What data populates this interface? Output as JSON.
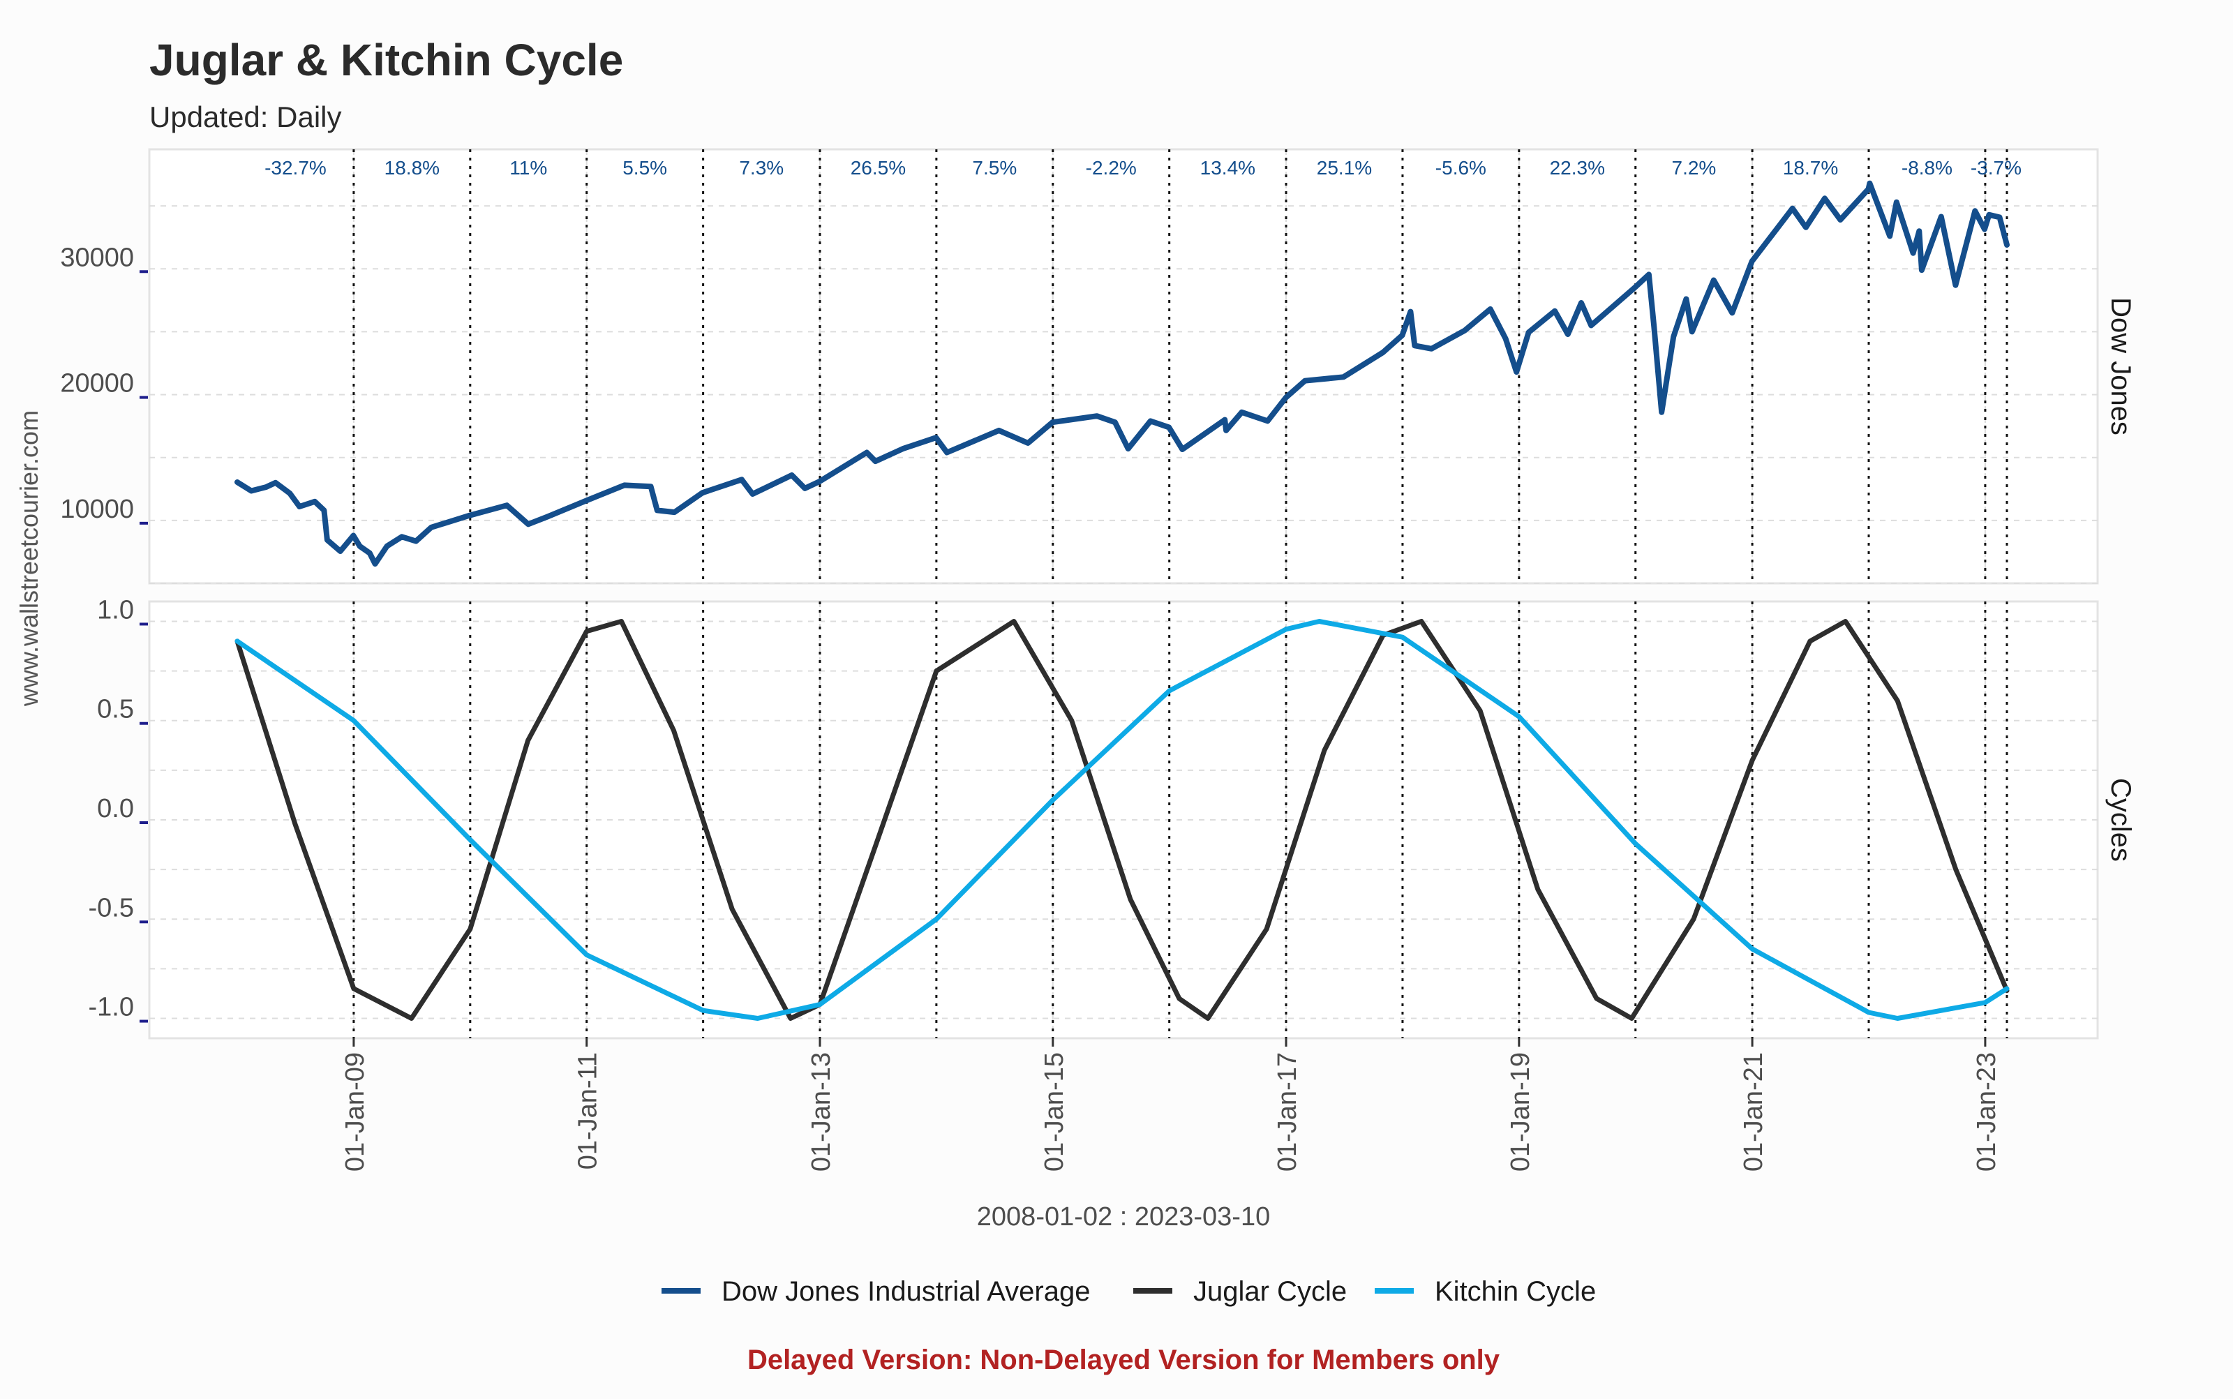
{
  "chart_data": {
    "type": "line",
    "title": "Juglar & Kitchin Cycle",
    "subtitle": "Updated: Daily",
    "side_label": "www.wallstreetcourier.com",
    "xlabel": "2008-01-02 : 2023-03-10",
    "footer": "Delayed Version: Non-Delayed Version for Members only",
    "grid": true,
    "legend_position": "bottom",
    "x_range": [
      "2008-01-02",
      "2023-03-10"
    ],
    "x_tick_labels": [
      "01-Jan-09",
      "01-Jan-11",
      "01-Jan-13",
      "01-Jan-15",
      "01-Jan-17",
      "01-Jan-19",
      "01-Jan-21",
      "01-Jan-23"
    ],
    "x_tick_dates": [
      "2009-01-01",
      "2011-01-01",
      "2013-01-01",
      "2015-01-01",
      "2017-01-01",
      "2019-01-01",
      "2021-01-01",
      "2023-01-01"
    ],
    "year_markers": [
      "2009-01-01",
      "2010-01-01",
      "2011-01-01",
      "2012-01-01",
      "2013-01-01",
      "2014-01-01",
      "2015-01-01",
      "2016-01-01",
      "2017-01-01",
      "2018-01-01",
      "2019-01-01",
      "2020-01-01",
      "2021-01-01",
      "2022-01-01",
      "2023-01-01",
      "2023-03-10"
    ],
    "annual_returns": [
      {
        "year": "2008",
        "label": "-32.7%"
      },
      {
        "year": "2009",
        "label": "18.8%"
      },
      {
        "year": "2010",
        "label": "11%"
      },
      {
        "year": "2011",
        "label": "5.5%"
      },
      {
        "year": "2012",
        "label": "7.3%"
      },
      {
        "year": "2013",
        "label": "26.5%"
      },
      {
        "year": "2014",
        "label": "7.5%"
      },
      {
        "year": "2015",
        "label": "-2.2%"
      },
      {
        "year": "2016",
        "label": "13.4%"
      },
      {
        "year": "2017",
        "label": "25.1%"
      },
      {
        "year": "2018",
        "label": "-5.6%"
      },
      {
        "year": "2019",
        "label": "22.3%"
      },
      {
        "year": "2020",
        "label": "7.2%"
      },
      {
        "year": "2021",
        "label": "18.7%"
      },
      {
        "year": "2022",
        "label": "-8.8%"
      },
      {
        "year": "2023",
        "label": "-3.7%"
      }
    ],
    "panels": [
      {
        "name": "Dow Jones",
        "ylim": [
          5000,
          39500
        ],
        "y_ticks": [
          10000,
          20000,
          30000
        ],
        "y_tick_labels": [
          "10000",
          "20000",
          "30000"
        ],
        "series": [
          {
            "name": "Dow Jones Industrial Average",
            "color": "#144e8c",
            "points": [
              [
                "2008-01-02",
                13044
              ],
              [
                "2008-02-15",
                12350
              ],
              [
                "2008-04-01",
                12650
              ],
              [
                "2008-05-01",
                13000
              ],
              [
                "2008-06-15",
                12150
              ],
              [
                "2008-07-15",
                11100
              ],
              [
                "2008-09-01",
                11500
              ],
              [
                "2008-09-30",
                10800
              ],
              [
                "2008-10-10",
                8450
              ],
              [
                "2008-11-20",
                7550
              ],
              [
                "2008-12-31",
                8800
              ],
              [
                "2009-01-20",
                7950
              ],
              [
                "2009-02-20",
                7400
              ],
              [
                "2009-03-09",
                6550
              ],
              [
                "2009-04-15",
                7950
              ],
              [
                "2009-06-01",
                8700
              ],
              [
                "2009-07-15",
                8350
              ],
              [
                "2009-09-01",
                9450
              ],
              [
                "2009-12-31",
                10400
              ],
              [
                "2010-04-26",
                11200
              ],
              [
                "2010-07-02",
                9700
              ],
              [
                "2010-09-01",
                10300
              ],
              [
                "2010-12-31",
                11580
              ],
              [
                "2011-04-29",
                12800
              ],
              [
                "2011-07-21",
                12700
              ],
              [
                "2011-08-10",
                10800
              ],
              [
                "2011-10-03",
                10650
              ],
              [
                "2011-12-30",
                12200
              ],
              [
                "2012-05-01",
                13250
              ],
              [
                "2012-06-04",
                12100
              ],
              [
                "2012-10-05",
                13600
              ],
              [
                "2012-11-15",
                12550
              ],
              [
                "2012-12-31",
                13100
              ],
              [
                "2013-05-28",
                15400
              ],
              [
                "2013-06-24",
                14700
              ],
              [
                "2013-09-18",
                15700
              ],
              [
                "2013-12-31",
                16580
              ],
              [
                "2014-02-03",
                15400
              ],
              [
                "2014-07-16",
                17150
              ],
              [
                "2014-10-15",
                16150
              ],
              [
                "2014-12-31",
                17800
              ],
              [
                "2015-05-19",
                18300
              ],
              [
                "2015-07-15",
                17800
              ],
              [
                "2015-08-25",
                15700
              ],
              [
                "2015-11-03",
                17900
              ],
              [
                "2015-12-31",
                17400
              ],
              [
                "2016-02-11",
                15650
              ],
              [
                "2016-06-23",
                18000
              ],
              [
                "2016-06-27",
                17150
              ],
              [
                "2016-08-15",
                18600
              ],
              [
                "2016-11-04",
                17900
              ],
              [
                "2016-12-31",
                19760
              ],
              [
                "2017-03-01",
                21100
              ],
              [
                "2017-06-30",
                21400
              ],
              [
                "2017-10-31",
                23350
              ],
              [
                "2017-12-31",
                24720
              ],
              [
                "2018-01-26",
                26600
              ],
              [
                "2018-02-08",
                23900
              ],
              [
                "2018-04-02",
                23650
              ],
              [
                "2018-07-15",
                25100
              ],
              [
                "2018-10-03",
                26800
              ],
              [
                "2018-11-20",
                24450
              ],
              [
                "2018-12-24",
                21800
              ],
              [
                "2019-01-31",
                24950
              ],
              [
                "2019-04-23",
                26650
              ],
              [
                "2019-06-03",
                24800
              ],
              [
                "2019-07-15",
                27300
              ],
              [
                "2019-08-15",
                25500
              ],
              [
                "2019-12-31",
                28540
              ],
              [
                "2020-02-12",
                29550
              ],
              [
                "2020-02-28",
                25400
              ],
              [
                "2020-03-23",
                18600
              ],
              [
                "2020-04-29",
                24600
              ],
              [
                "2020-06-08",
                27600
              ],
              [
                "2020-06-26",
                25000
              ],
              [
                "2020-09-02",
                29100
              ],
              [
                "2020-10-30",
                26500
              ],
              [
                "2020-12-31",
                30600
              ],
              [
                "2021-05-07",
                34800
              ],
              [
                "2021-06-18",
                33300
              ],
              [
                "2021-08-16",
                35600
              ],
              [
                "2021-10-04",
                33900
              ],
              [
                "2021-12-31",
                36340
              ],
              [
                "2022-01-04",
                36800
              ],
              [
                "2022-03-08",
                32600
              ],
              [
                "2022-03-29",
                35300
              ],
              [
                "2022-05-20",
                31250
              ],
              [
                "2022-06-08",
                33000
              ],
              [
                "2022-06-16",
                29900
              ],
              [
                "2022-08-16",
                34150
              ],
              [
                "2022-09-30",
                28700
              ],
              [
                "2022-11-30",
                34600
              ],
              [
                "2022-12-30",
                33150
              ],
              [
                "2023-01-13",
                34300
              ],
              [
                "2023-02-15",
                34100
              ],
              [
                "2023-03-10",
                31900
              ]
            ]
          }
        ]
      },
      {
        "name": "Cycles",
        "ylim": [
          -1.1,
          1.1
        ],
        "y_ticks": [
          -1.0,
          -0.5,
          0.0,
          0.5,
          1.0
        ],
        "y_tick_labels": [
          "-1.0",
          "-0.5",
          "0.0",
          "0.5",
          "1.0"
        ],
        "series": [
          {
            "name": "Juglar Cycle",
            "color": "#2e2e2e",
            "points": [
              [
                "2008-01-02",
                0.9
              ],
              [
                "2008-07-01",
                -0.02
              ],
              [
                "2009-01-01",
                -0.85
              ],
              [
                "2009-07-01",
                -1.0
              ],
              [
                "2010-01-01",
                -0.55
              ],
              [
                "2010-07-01",
                0.4
              ],
              [
                "2011-01-01",
                0.95
              ],
              [
                "2011-04-20",
                1.0
              ],
              [
                "2011-10-01",
                0.45
              ],
              [
                "2012-04-01",
                -0.45
              ],
              [
                "2012-10-01",
                -1.0
              ],
              [
                "2013-01-01",
                -0.93
              ],
              [
                "2013-07-01",
                -0.1
              ],
              [
                "2014-01-01",
                0.75
              ],
              [
                "2014-09-01",
                1.0
              ],
              [
                "2015-03-01",
                0.5
              ],
              [
                "2015-09-01",
                -0.4
              ],
              [
                "2016-02-01",
                -0.9
              ],
              [
                "2016-05-01",
                -1.0
              ],
              [
                "2016-11-01",
                -0.55
              ],
              [
                "2017-05-01",
                0.35
              ],
              [
                "2017-11-01",
                0.93
              ],
              [
                "2018-03-01",
                1.0
              ],
              [
                "2018-09-01",
                0.55
              ],
              [
                "2019-03-01",
                -0.35
              ],
              [
                "2019-09-01",
                -0.9
              ],
              [
                "2019-12-20",
                -1.0
              ],
              [
                "2020-07-01",
                -0.5
              ],
              [
                "2021-01-01",
                0.3
              ],
              [
                "2021-07-01",
                0.9
              ],
              [
                "2021-10-20",
                1.0
              ],
              [
                "2022-04-01",
                0.6
              ],
              [
                "2022-10-01",
                -0.25
              ],
              [
                "2023-03-10",
                -0.86
              ]
            ]
          },
          {
            "name": "Kitchin Cycle",
            "color": "#0eaae6",
            "points": [
              [
                "2008-01-02",
                0.9
              ],
              [
                "2009-01-01",
                0.5
              ],
              [
                "2010-01-01",
                -0.1
              ],
              [
                "2011-01-01",
                -0.68
              ],
              [
                "2012-01-01",
                -0.96
              ],
              [
                "2012-06-20",
                -1.0
              ],
              [
                "2013-01-01",
                -0.93
              ],
              [
                "2014-01-01",
                -0.5
              ],
              [
                "2015-01-01",
                0.1
              ],
              [
                "2016-01-01",
                0.65
              ],
              [
                "2017-01-01",
                0.96
              ],
              [
                "2017-04-15",
                1.0
              ],
              [
                "2018-01-01",
                0.92
              ],
              [
                "2019-01-01",
                0.52
              ],
              [
                "2020-01-01",
                -0.12
              ],
              [
                "2021-01-01",
                -0.65
              ],
              [
                "2022-01-01",
                -0.97
              ],
              [
                "2022-04-01",
                -1.0
              ],
              [
                "2023-01-01",
                -0.92
              ],
              [
                "2023-03-10",
                -0.85
              ]
            ]
          }
        ]
      }
    ],
    "legend": [
      {
        "name": "Dow Jones Industrial Average",
        "color": "#144e8c"
      },
      {
        "name": "Juglar Cycle",
        "color": "#2e2e2e"
      },
      {
        "name": "Kitchin Cycle",
        "color": "#0eaae6"
      }
    ],
    "colors": {
      "title": "#2b2b2b",
      "axis_text": "#4d4d4d",
      "return_label": "#144e8c",
      "footer": "#b22222",
      "grid": "#dddddd",
      "tick_mark": "#1e1e8c"
    }
  }
}
